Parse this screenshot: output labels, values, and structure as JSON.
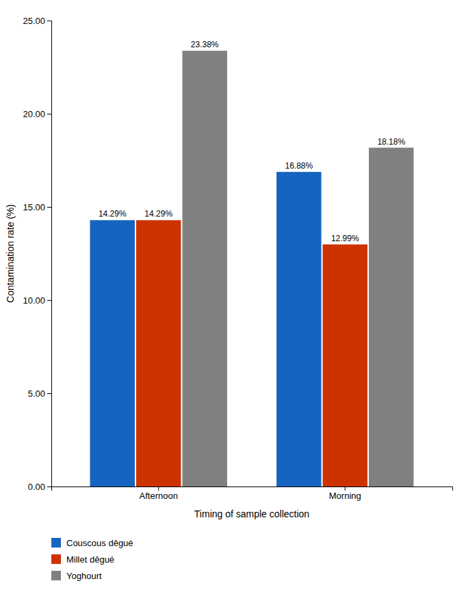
{
  "chart_data": {
    "type": "bar",
    "categories": [
      "Afternoon",
      "Morning"
    ],
    "series": [
      {
        "name": "Couscous dêgué",
        "color": "#1565C0",
        "values": [
          14.29,
          16.88
        ],
        "value_labels": [
          "14.29%",
          "16.88%"
        ]
      },
      {
        "name": "Millet dêgué",
        "color": "#CC3300",
        "values": [
          14.29,
          12.99
        ],
        "value_labels": [
          "14.29%",
          "12.99%"
        ]
      },
      {
        "name": "Yoghourt",
        "color": "#808080",
        "values": [
          23.38,
          18.18
        ],
        "value_labels": [
          "23.38%",
          "18.18%"
        ]
      }
    ],
    "x_label": "Timing of sample collection",
    "y_label": "Contamination rate (%)",
    "ylim": [
      0,
      25.0
    ],
    "yticks": [
      {
        "value": 0.0,
        "label": "0.00"
      },
      {
        "value": 5.0,
        "label": "5.00"
      },
      {
        "value": 10.0,
        "label": "10.00"
      },
      {
        "value": 15.0,
        "label": "15.00"
      },
      {
        "value": 20.0,
        "label": "20.00"
      },
      {
        "value": 25.0,
        "label": "25.00"
      }
    ],
    "data_labels": true,
    "grid": false,
    "legend": "lower left"
  }
}
